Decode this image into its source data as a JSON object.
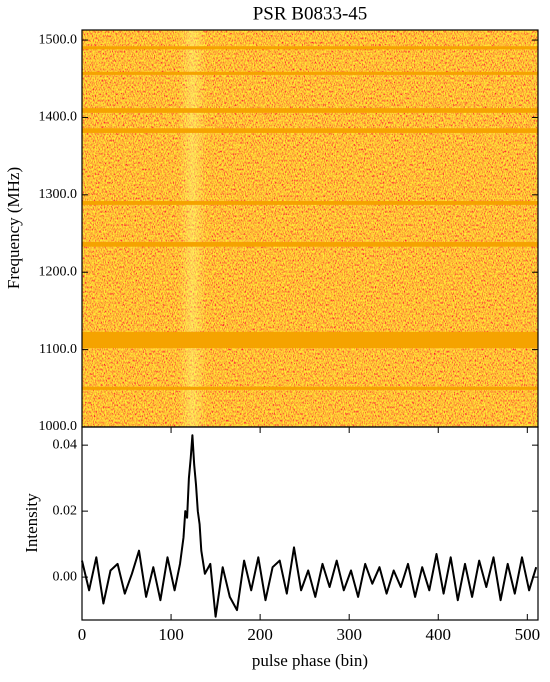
{
  "chart_data": [
    {
      "type": "heatmap",
      "title": "PSR B0833-45",
      "ylabel": "Frequency (MHz)",
      "ylim": [
        1000,
        1513
      ],
      "xlim": [
        0,
        512
      ],
      "yticks": [
        {
          "value": 1000,
          "label": "1000.0"
        },
        {
          "value": 1100,
          "label": "1100.0"
        },
        {
          "value": 1200,
          "label": "1200.0"
        },
        {
          "value": 1300,
          "label": "1300.0"
        },
        {
          "value": 1400,
          "label": "1400.0"
        },
        {
          "value": 1500,
          "label": "1500.0"
        }
      ],
      "color": "#f5a300",
      "masked_bands": [
        [
          1488,
          1492
        ],
        [
          1455,
          1459
        ],
        [
          1406,
          1412
        ],
        [
          1380,
          1386
        ],
        [
          1287,
          1292
        ],
        [
          1233,
          1239
        ],
        [
          1102,
          1123
        ],
        [
          1048,
          1052
        ]
      ]
    },
    {
      "type": "line",
      "ylabel": "Intensity",
      "xlabel": "pulse phase (bin)",
      "color": "#000000",
      "xlim": [
        0,
        512
      ],
      "xticks": [
        0,
        100,
        200,
        300,
        400,
        500
      ],
      "ylim": [
        -0.013,
        0.0455
      ],
      "yticks": [
        {
          "value": 0,
          "label": "0.00"
        },
        {
          "value": 0.02,
          "label": "0.02"
        },
        {
          "value": 0.04,
          "label": "0.04"
        }
      ],
      "x": [
        0,
        8,
        16,
        24,
        32,
        40,
        48,
        56,
        64,
        72,
        80,
        88,
        96,
        104,
        110,
        114,
        116,
        118,
        120,
        122,
        124,
        126,
        128,
        130,
        132,
        134,
        138,
        144,
        150,
        158,
        166,
        174,
        182,
        190,
        198,
        206,
        214,
        222,
        230,
        238,
        246,
        254,
        262,
        270,
        278,
        286,
        294,
        302,
        310,
        318,
        326,
        334,
        342,
        350,
        358,
        366,
        374,
        382,
        390,
        398,
        406,
        414,
        422,
        430,
        438,
        446,
        454,
        462,
        470,
        478,
        486,
        494,
        502,
        510
      ],
      "values": [
        0.005,
        -0.004,
        0.006,
        -0.008,
        0.002,
        0.004,
        -0.005,
        0.001,
        0.008,
        -0.006,
        0.003,
        -0.007,
        0.006,
        -0.004,
        0.004,
        0.012,
        0.02,
        0.018,
        0.03,
        0.036,
        0.043,
        0.034,
        0.028,
        0.02,
        0.016,
        0.008,
        0.001,
        0.004,
        -0.012,
        0.003,
        -0.006,
        -0.01,
        0.005,
        -0.004,
        0.006,
        -0.007,
        0.003,
        0.005,
        -0.005,
        0.009,
        -0.004,
        0.002,
        -0.006,
        0.004,
        -0.003,
        0.005,
        -0.004,
        0.002,
        -0.006,
        0.004,
        -0.002,
        0.003,
        -0.005,
        0.002,
        -0.003,
        0.004,
        -0.006,
        0.003,
        -0.004,
        0.007,
        -0.005,
        0.006,
        -0.007,
        0.004,
        -0.006,
        0.005,
        -0.003,
        0.006,
        -0.007,
        0.004,
        -0.005,
        0.006,
        -0.004,
        0.003
      ]
    }
  ]
}
